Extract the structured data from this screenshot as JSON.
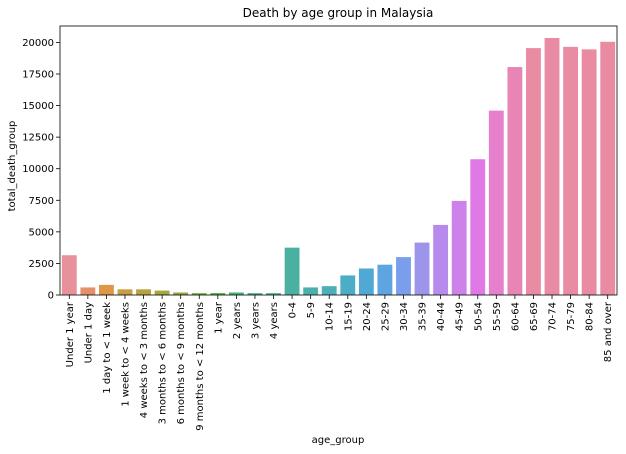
{
  "chart_data": {
    "type": "bar",
    "title": "Death by age group in Malaysia",
    "xlabel": "age_group",
    "ylabel": "total_death_group",
    "ylim": [
      0,
      21300
    ],
    "yticks": [
      0,
      2500,
      5000,
      7500,
      10000,
      12500,
      15000,
      17500,
      20000
    ],
    "ytick_labels": [
      "0",
      "2500",
      "5000",
      "7500",
      "10000",
      "12500",
      "15000",
      "17500",
      "20000"
    ],
    "grid": false,
    "categories": [
      "Under 1 year",
      "Under 1 day",
      "1 day to < 1 week",
      "1 week to < 4 weeks",
      "4 weeks to < 3 months",
      "3 months to < 6 months",
      "6 months to < 9 months",
      "9 months to < 12 months",
      "1 year",
      "2 years",
      "3 years",
      "4 years",
      "0-4",
      "5-9",
      "10-14",
      "15-19",
      "20-24",
      "25-29",
      "30-34",
      "35-39",
      "40-44",
      "45-49",
      "50-54",
      "55-59",
      "60-64",
      "65-69",
      "70-74",
      "75-79",
      "80-84",
      "85 and over"
    ],
    "values": [
      3150,
      600,
      800,
      450,
      450,
      350,
      200,
      150,
      150,
      200,
      150,
      150,
      3750,
      600,
      700,
      1550,
      2100,
      2400,
      3000,
      4150,
      5550,
      7450,
      10750,
      14600,
      18050,
      19550,
      20350,
      19650,
      19450,
      20050
    ],
    "colors": [
      "#e8919a",
      "#e58f6b",
      "#dd9745",
      "#c99d40",
      "#b6a33f",
      "#a2a73f",
      "#90ab3f",
      "#75af3e",
      "#46b43d",
      "#46b475",
      "#48b28f",
      "#4ab1a0",
      "#4ab1a0",
      "#4bb0ad",
      "#4caeb9",
      "#4dadc6",
      "#50a9d4",
      "#5ca5e0",
      "#7a9eeb",
      "#9d95ec",
      "#b78beb",
      "#cd82ea",
      "#df79e6",
      "#e67fcc",
      "#e985b4",
      "#e98ba3",
      "#e98ba3",
      "#e98ba3",
      "#e98ba3",
      "#e98ba3"
    ]
  }
}
